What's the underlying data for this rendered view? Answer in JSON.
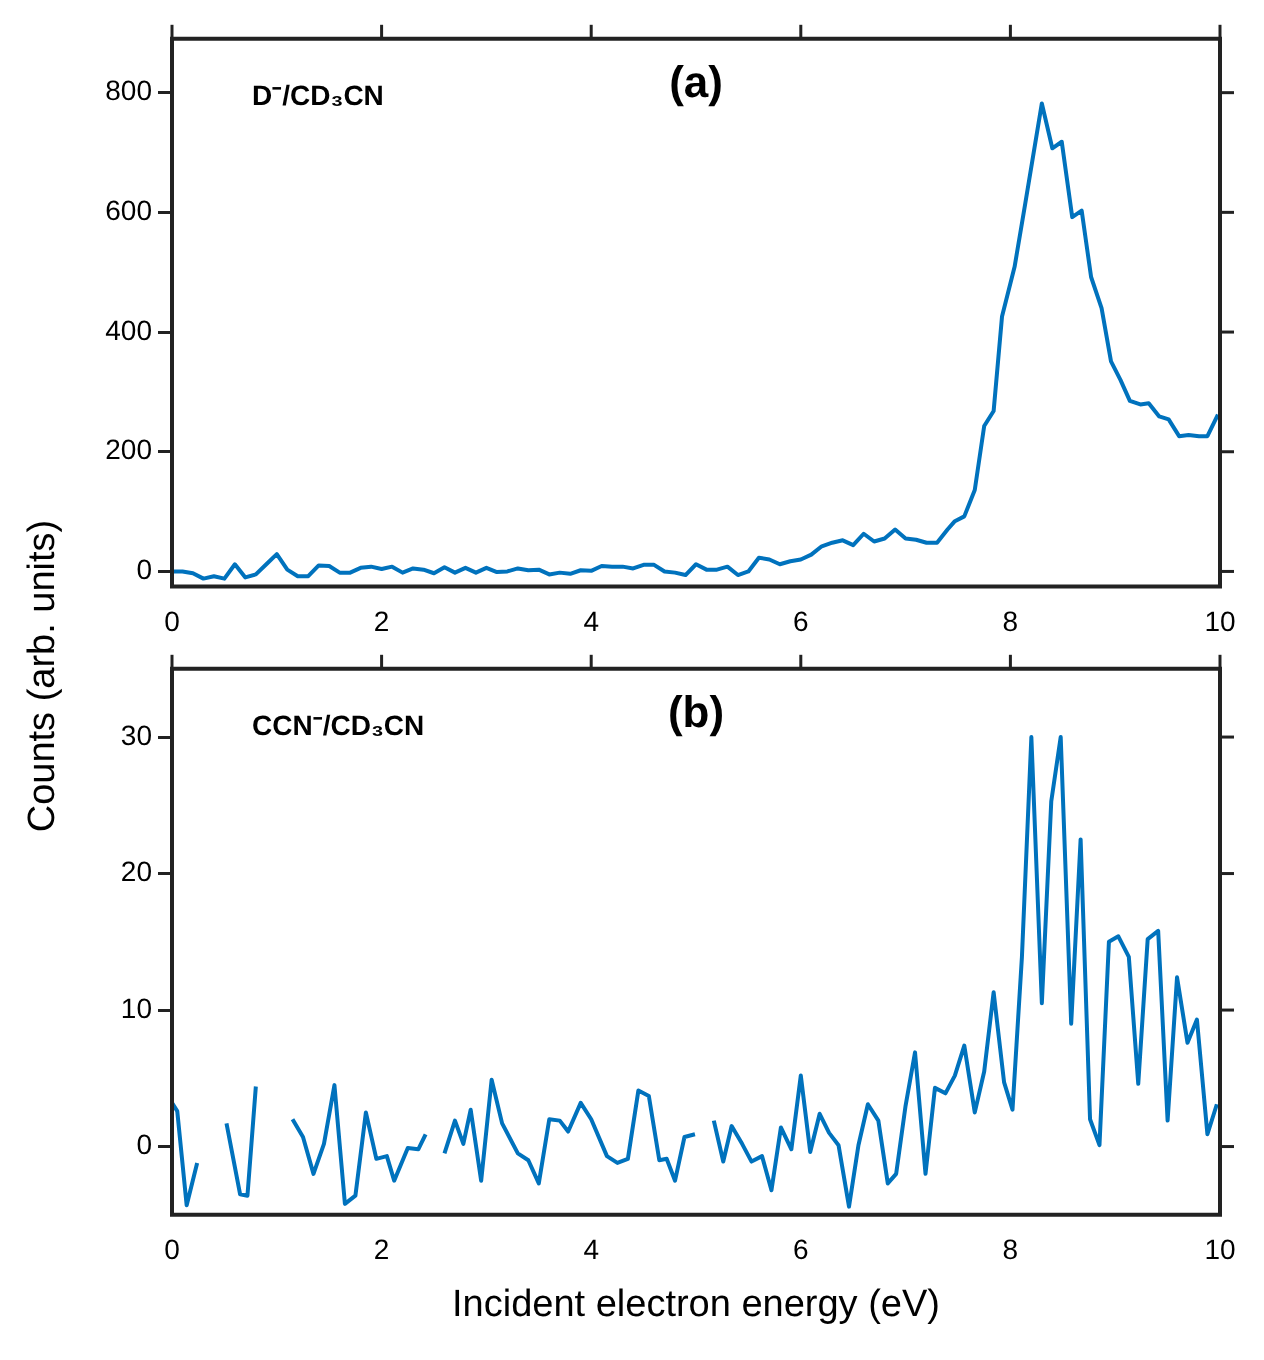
{
  "chart_data": [
    {
      "type": "line",
      "title": "(a)",
      "annotations": [
        "D⁻/CD₃CN"
      ],
      "ylabel": "Counts (arb. units)",
      "color": "#0072bd",
      "marker": "none",
      "grid": false,
      "x": [
        0,
        0.1,
        0.2,
        0.3,
        0.4,
        0.5,
        0.6,
        0.7,
        0.8,
        0.9,
        1.0,
        1.1,
        1.2,
        1.3,
        1.4,
        1.5,
        1.6,
        1.7,
        1.8,
        1.9,
        2.0,
        2.1,
        2.2,
        2.3,
        2.4,
        2.5,
        2.6,
        2.7,
        2.8,
        2.9,
        3.0,
        3.1,
        3.2,
        3.3,
        3.4,
        3.5,
        3.6,
        3.7,
        3.8,
        3.9,
        4.0,
        4.1,
        4.2,
        4.3,
        4.4,
        4.5,
        4.6,
        4.7,
        4.8,
        4.9,
        5.0,
        5.1,
        5.2,
        5.3,
        5.4,
        5.5,
        5.6,
        5.7,
        5.8,
        5.9,
        6.0,
        6.1,
        6.2,
        6.3,
        6.4,
        6.5,
        6.6,
        6.7,
        6.8,
        6.9,
        7.0,
        7.1,
        7.2,
        7.3,
        7.4,
        7.47,
        7.56,
        7.66,
        7.75,
        7.84,
        7.92,
        8.04,
        8.14,
        8.3,
        8.4,
        8.49,
        8.59,
        8.68,
        8.77,
        8.87,
        8.96,
        9.05,
        9.14,
        9.24,
        9.32,
        9.42,
        9.51,
        9.61,
        9.7,
        9.8,
        9.88,
        9.98
      ],
      "values": [
        0,
        0,
        -3,
        -12,
        -8,
        -12,
        12,
        -10,
        -5,
        12,
        29,
        3,
        -8,
        -8,
        10,
        9,
        -2,
        -2,
        6,
        8,
        4,
        8,
        -2,
        5,
        3,
        -3,
        7,
        -2,
        6,
        -2,
        6,
        -1,
        0,
        5,
        2,
        3,
        -5,
        -2,
        -4,
        2,
        1,
        9,
        8,
        8,
        5,
        11,
        11,
        0,
        -2,
        -6,
        12,
        3,
        3,
        8,
        -6,
        0,
        23,
        20,
        12,
        17,
        20,
        28,
        42,
        48,
        52,
        44,
        63,
        50,
        55,
        70,
        55,
        53,
        48,
        48,
        70,
        84,
        92,
        136,
        243,
        268,
        426,
        509,
        613,
        782,
        707,
        718,
        592,
        603,
        492,
        440,
        351,
        320,
        285,
        279,
        281,
        259,
        254,
        226,
        228,
        226,
        226,
        262
      ],
      "xlim": [
        0,
        10
      ],
      "xticks": [
        0,
        2,
        4,
        6,
        8,
        10
      ],
      "ylim": [
        -25,
        890
      ],
      "yticks": [
        0,
        200,
        400,
        600,
        800
      ]
    },
    {
      "type": "line",
      "title": "(b)",
      "annotations": [
        "CCN⁻/CD₃CN"
      ],
      "xlabel": "Incident electron energy (eV)",
      "color": "#0072bd",
      "marker": "none",
      "grid": false,
      "x": [
        0,
        0.05,
        0.14,
        0.24,
        0.4,
        0.52,
        0.65,
        0.72,
        0.8,
        0.9,
        1.0,
        1.15,
        1.25,
        1.35,
        1.45,
        1.55,
        1.65,
        1.75,
        1.85,
        1.95,
        2.05,
        2.12,
        2.25,
        2.35,
        2.42,
        2.5,
        2.6,
        2.7,
        2.78,
        2.85,
        2.95,
        3.05,
        3.15,
        3.3,
        3.4,
        3.5,
        3.6,
        3.7,
        3.78,
        3.9,
        4.0,
        4.15,
        4.25,
        4.35,
        4.45,
        4.55,
        4.65,
        4.72,
        4.8,
        4.89,
        4.99,
        5.08,
        5.17,
        5.26,
        5.34,
        5.44,
        5.53,
        5.63,
        5.72,
        5.81,
        5.91,
        6.0,
        6.09,
        6.18,
        6.27,
        6.36,
        6.46,
        6.55,
        6.64,
        6.74,
        6.83,
        6.91,
        7.0,
        7.09,
        7.19,
        7.28,
        7.38,
        7.47,
        7.56,
        7.66,
        7.75,
        7.84,
        7.94,
        8.02,
        8.11,
        8.2,
        8.3,
        8.39,
        8.48,
        8.58,
        8.67,
        8.76,
        8.85,
        8.94,
        9.03,
        9.13,
        9.22,
        9.31,
        9.41,
        9.5,
        9.59,
        9.69,
        9.78,
        9.88,
        9.97
      ],
      "values": [
        3.2,
        2.6,
        -4.3,
        -1.2,
        null,
        1.7,
        -3.5,
        -3.6,
        4.4,
        null,
        null,
        2,
        0.7,
        -2,
        0.2,
        4.5,
        -4.2,
        -3.6,
        2.5,
        -0.9,
        -0.7,
        -2.5,
        -0.1,
        -0.2,
        0.9,
        null,
        -0.5,
        1.9,
        0.2,
        2.7,
        -2.5,
        4.9,
        1.7,
        -0.5,
        -1,
        -2.7,
        2,
        1.9,
        1.1,
        3.2,
        2,
        -0.7,
        -1.2,
        -0.9,
        4.1,
        3.7,
        -1,
        -0.9,
        -2.5,
        0.7,
        0.9,
        null,
        1.9,
        -1.1,
        1.5,
        0.2,
        -1.1,
        -0.7,
        -3.2,
        1.4,
        -0.2,
        5.2,
        -0.4,
        2.4,
        1,
        0.1,
        -4.4,
        0.1,
        3.1,
        1.9,
        -2.7,
        -2,
        3,
        6.9,
        -2,
        4.3,
        3.9,
        5.2,
        7.4,
        2.5,
        5.5,
        11.3,
        4.7,
        2.7,
        13.9,
        30,
        10.5,
        25.3,
        30,
        9,
        22.5,
        2,
        0.1,
        15,
        15.4,
        13.9,
        4.6,
        15.2,
        15.8,
        1.9,
        12.4,
        7.6,
        9.3,
        0.9,
        3.1
      ],
      "xlim": [
        0,
        10
      ],
      "xticks": [
        0,
        2,
        4,
        6,
        8,
        10
      ],
      "ylim": [
        -5,
        35
      ],
      "yticks": [
        0,
        10,
        20,
        30
      ]
    }
  ]
}
